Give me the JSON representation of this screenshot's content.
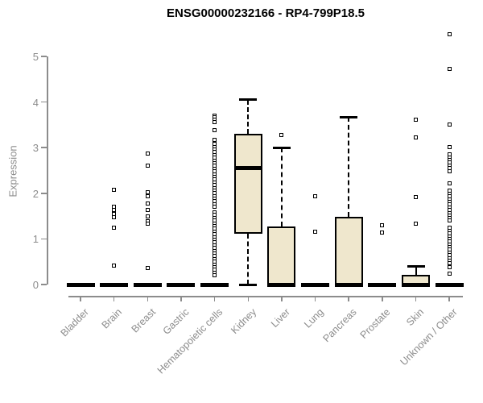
{
  "colors": {
    "box_fill": "#efe7cd",
    "box_border": "#000000",
    "median": "#000000",
    "outlier": "#000000",
    "axis": "#8c8c8c",
    "tick_label": "#8c8c8c",
    "title": "#000000",
    "background": "#ffffff"
  },
  "chart_data": {
    "type": "boxplot",
    "title": "ENSG00000232166 - RP4-799P18.5",
    "xlabel": "",
    "ylabel": "Expression",
    "ylim": [
      0,
      5.5
    ],
    "yticks": [
      0,
      1,
      2,
      3,
      4,
      5
    ],
    "grid": false,
    "legend": false,
    "categories": [
      "Bladder",
      "Brain",
      "Breast",
      "Gastric",
      "Hematopoietic cells",
      "Kidney",
      "Liver",
      "Lung",
      "Pancreas",
      "Prostate",
      "Skin",
      "Unknown / Other"
    ],
    "series": [
      {
        "label": "Bladder",
        "q1": 0,
        "median": 0,
        "q3": 0,
        "whisker_low": 0,
        "whisker_high": 0,
        "outliers": []
      },
      {
        "label": "Brain",
        "q1": 0,
        "median": 0,
        "q3": 0,
        "whisker_low": 0,
        "whisker_high": 0,
        "outliers": [
          2.07,
          1.71,
          1.63,
          1.55,
          1.48,
          1.25,
          0.42
        ]
      },
      {
        "label": "Breast",
        "q1": 0,
        "median": 0,
        "q3": 0,
        "whisker_low": 0,
        "whisker_high": 0,
        "outliers": [
          2.87,
          2.61,
          2.03,
          1.93,
          1.78,
          1.64,
          1.5,
          1.38,
          1.33,
          0.37
        ]
      },
      {
        "label": "Gastric",
        "q1": 0,
        "median": 0,
        "q3": 0,
        "whisker_low": 0,
        "whisker_high": 0,
        "outliers": []
      },
      {
        "label": "Hematopoietic cells",
        "q1": 0,
        "median": 0,
        "q3": 0,
        "whisker_low": 0,
        "whisker_high": 0,
        "outliers": [
          3.71,
          3.66,
          3.61,
          3.56,
          3.38,
          3.18,
          3.09,
          3.02,
          2.96,
          2.9,
          2.84,
          2.78,
          2.72,
          2.66,
          2.6,
          2.54,
          2.48,
          2.42,
          2.36,
          2.3,
          2.24,
          2.18,
          2.12,
          2.06,
          2.0,
          1.94,
          1.88,
          1.82,
          1.76,
          1.7,
          1.58,
          1.52,
          1.46,
          1.4,
          1.34,
          1.28,
          1.22,
          1.16,
          1.1,
          1.04,
          0.98,
          0.92,
          0.86,
          0.8,
          0.74,
          0.68,
          0.62,
          0.56,
          0.5,
          0.44,
          0.38,
          0.32,
          0.26,
          0.2
        ]
      },
      {
        "label": "Kidney",
        "q1": 1.11,
        "median": 2.56,
        "q3": 3.31,
        "whisker_low": 0,
        "whisker_high": 4.05,
        "outliers": []
      },
      {
        "label": "Liver",
        "q1": 0,
        "median": 0,
        "q3": 1.28,
        "whisker_low": 0,
        "whisker_high": 3.0,
        "outliers": [
          3.27
        ]
      },
      {
        "label": "Lung",
        "q1": 0,
        "median": 0,
        "q3": 0,
        "whisker_low": 0,
        "whisker_high": 0,
        "outliers": [
          1.94,
          1.16
        ]
      },
      {
        "label": "Pancreas",
        "q1": 0,
        "median": 0,
        "q3": 1.49,
        "whisker_low": 0,
        "whisker_high": 3.67,
        "outliers": []
      },
      {
        "label": "Prostate",
        "q1": 0,
        "median": 0,
        "q3": 0,
        "whisker_low": 0,
        "whisker_high": 0,
        "outliers": [
          1.29,
          1.14
        ]
      },
      {
        "label": "Skin",
        "q1": 0,
        "median": 0,
        "q3": 0.22,
        "whisker_low": 0,
        "whisker_high": 0.4,
        "outliers": [
          3.61,
          3.22,
          1.91,
          1.33
        ]
      },
      {
        "label": "Unknown / Other",
        "q1": 0,
        "median": 0,
        "q3": 0,
        "whisker_low": 0,
        "whisker_high": 0,
        "outliers": [
          5.49,
          4.72,
          3.5,
          3.02,
          2.85,
          2.79,
          2.73,
          2.67,
          2.61,
          2.55,
          2.49,
          2.21,
          2.05,
          1.99,
          1.93,
          1.87,
          1.81,
          1.75,
          1.69,
          1.63,
          1.57,
          1.51,
          1.45,
          1.41,
          1.24,
          1.18,
          1.12,
          1.06,
          1.0,
          0.94,
          0.88,
          0.82,
          0.76,
          0.7,
          0.64,
          0.58,
          0.52,
          0.46,
          0.4,
          0.38,
          0.23
        ]
      }
    ]
  }
}
